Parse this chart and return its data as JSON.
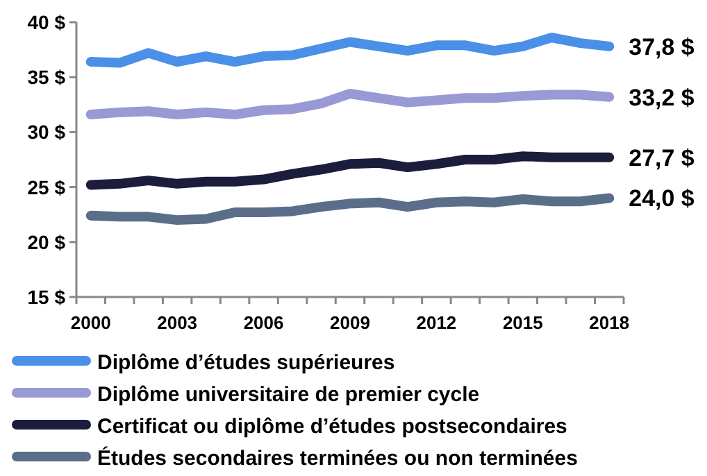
{
  "chart_data": {
    "type": "line",
    "categories": [
      "2000",
      null,
      null,
      "2003",
      null,
      null,
      "2006",
      null,
      null,
      "2009",
      null,
      null,
      "2012",
      null,
      null,
      "2015",
      null,
      null,
      "2018"
    ],
    "ylim": [
      15,
      40
    ],
    "yticks": [
      {
        "value": 15,
        "label": "15 $"
      },
      {
        "value": 20,
        "label": "20 $"
      },
      {
        "value": 25,
        "label": "25 $"
      },
      {
        "value": 30,
        "label": "30 $"
      },
      {
        "value": 35,
        "label": "35 $"
      },
      {
        "value": 40,
        "label": "40 $"
      }
    ],
    "grid": false,
    "legend": "bottom",
    "marker": "none",
    "line_style": "solid",
    "series": [
      {
        "name": "Diplôme d’études supérieures",
        "color": "#4a8fe8",
        "values": [
          36.4,
          36.3,
          37.2,
          36.4,
          36.9,
          36.4,
          36.9,
          37.0,
          37.6,
          38.2,
          37.8,
          37.4,
          37.9,
          37.9,
          37.4,
          37.8,
          38.6,
          38.1,
          37.8
        ],
        "value_labels": [
          null,
          null,
          null,
          null,
          null,
          null,
          null,
          null,
          null,
          null,
          null,
          null,
          null,
          null,
          null,
          null,
          null,
          null,
          "37,8 $"
        ]
      },
      {
        "name": "Diplôme universitaire de premier cycle",
        "color": "#9999d6",
        "values": [
          31.6,
          31.8,
          31.9,
          31.6,
          31.8,
          31.6,
          32.0,
          32.1,
          32.6,
          33.5,
          33.1,
          32.7,
          32.9,
          33.1,
          33.1,
          33.3,
          33.4,
          33.4,
          33.2
        ],
        "value_labels": [
          null,
          null,
          null,
          null,
          null,
          null,
          null,
          null,
          null,
          null,
          null,
          null,
          null,
          null,
          null,
          null,
          null,
          null,
          "33,2 $"
        ]
      },
      {
        "name": "Certificat ou diplôme d’études postsecondaires",
        "color": "#1c1c3c",
        "values": [
          25.2,
          25.3,
          25.6,
          25.3,
          25.5,
          25.5,
          25.7,
          26.2,
          26.6,
          27.1,
          27.2,
          26.8,
          27.1,
          27.5,
          27.5,
          27.8,
          27.7,
          27.7,
          27.7
        ],
        "value_labels": [
          null,
          null,
          null,
          null,
          null,
          null,
          null,
          null,
          null,
          null,
          null,
          null,
          null,
          null,
          null,
          null,
          null,
          null,
          "27,7 $"
        ]
      },
      {
        "name": "Études secondaires terminées ou non terminées",
        "color": "#5a6e8a",
        "values": [
          22.4,
          22.3,
          22.3,
          22.0,
          22.1,
          22.7,
          22.7,
          22.8,
          23.2,
          23.5,
          23.6,
          23.2,
          23.6,
          23.7,
          23.6,
          23.9,
          23.7,
          23.7,
          24.0
        ],
        "value_labels": [
          null,
          null,
          null,
          null,
          null,
          null,
          null,
          null,
          null,
          null,
          null,
          null,
          null,
          null,
          null,
          null,
          null,
          null,
          "24,0 $"
        ]
      }
    ]
  }
}
